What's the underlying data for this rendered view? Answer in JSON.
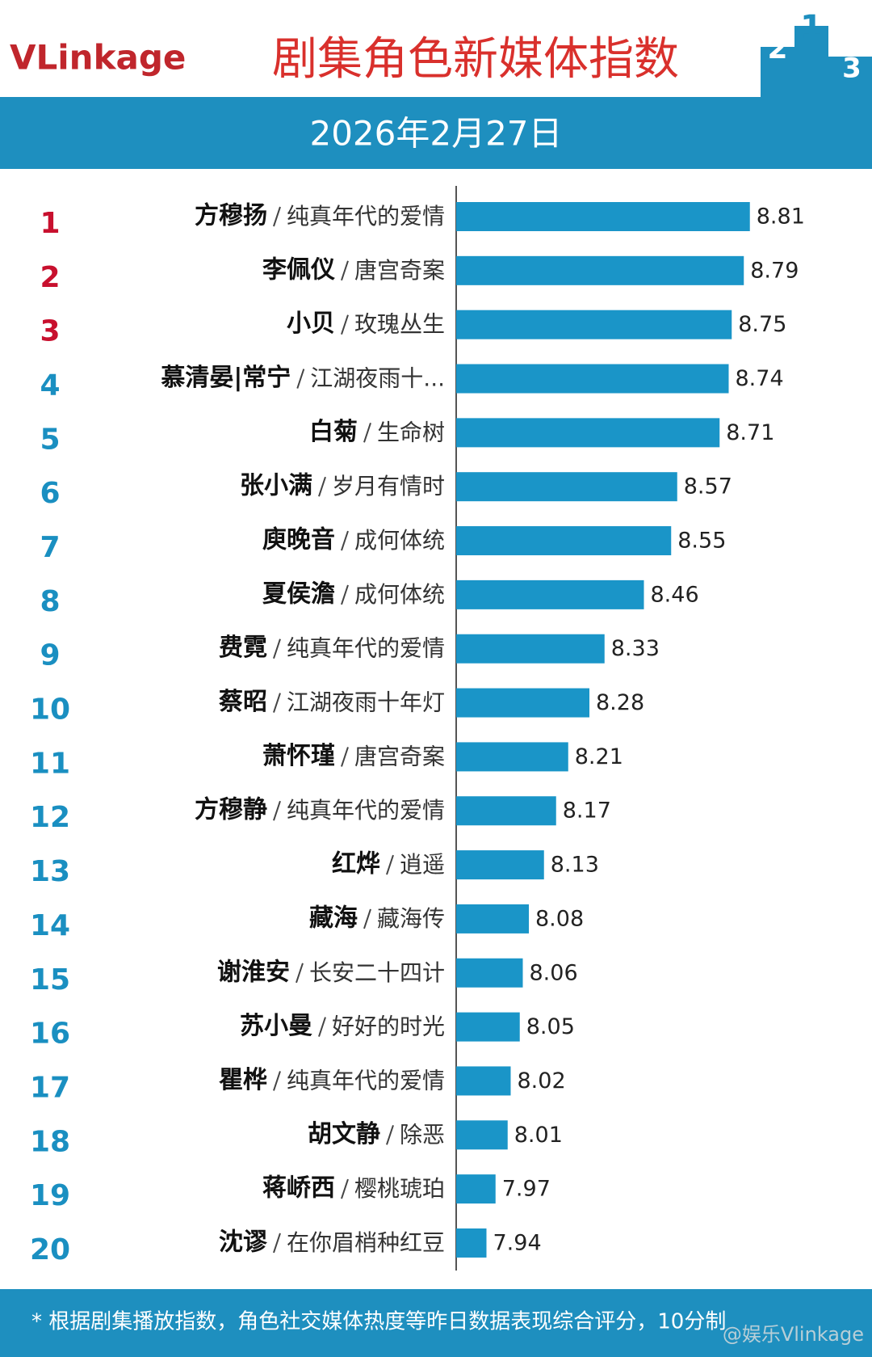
{
  "logo": "VLinkage",
  "chart_data": {
    "type": "hbar",
    "title": "剧集角色新媒体指数",
    "subtitle": "2026年2月27日",
    "ranks": [
      1,
      2,
      3,
      4,
      5,
      6,
      7,
      8,
      9,
      10,
      11,
      12,
      13,
      14,
      15,
      16,
      17,
      18,
      19,
      20
    ],
    "categories": [
      "方穆扬",
      "李佩仪",
      "小贝",
      "慕清晏|常宁",
      "白菊",
      "张小满",
      "庾晚音",
      "夏侯澹",
      "费霓",
      "蔡昭",
      "萧怀瑾",
      "方穆静",
      "红烨",
      "藏海",
      "谢淮安",
      "苏小曼",
      "瞿桦",
      "胡文静",
      "蒋峤西",
      "沈谬"
    ],
    "dramas": [
      "纯真年代的爱情",
      "唐宫奇案",
      "玫瑰丛生",
      "江湖夜雨十...",
      "生命树",
      "岁月有情时",
      "成何体统",
      "成何体统",
      "纯真年代的爱情",
      "江湖夜雨十年灯",
      "唐宫奇案",
      "纯真年代的爱情",
      "逍遥",
      "藏海传",
      "长安二十四计",
      "好好的时光",
      "纯真年代的爱情",
      "除恶",
      "樱桃琥珀",
      "在你眉梢种红豆"
    ],
    "values": [
      8.81,
      8.79,
      8.75,
      8.74,
      8.71,
      8.57,
      8.55,
      8.46,
      8.33,
      8.28,
      8.21,
      8.17,
      8.13,
      8.08,
      8.06,
      8.05,
      8.02,
      8.01,
      7.97,
      7.94
    ],
    "color": "#1a95c8",
    "xlim": [
      7.84,
      9.0
    ],
    "footnote": "* 根据剧集播放指数，角色社交媒体热度等昨日数据表现综合评分，10分制",
    "watermark": "@娱乐Vlinkage"
  }
}
